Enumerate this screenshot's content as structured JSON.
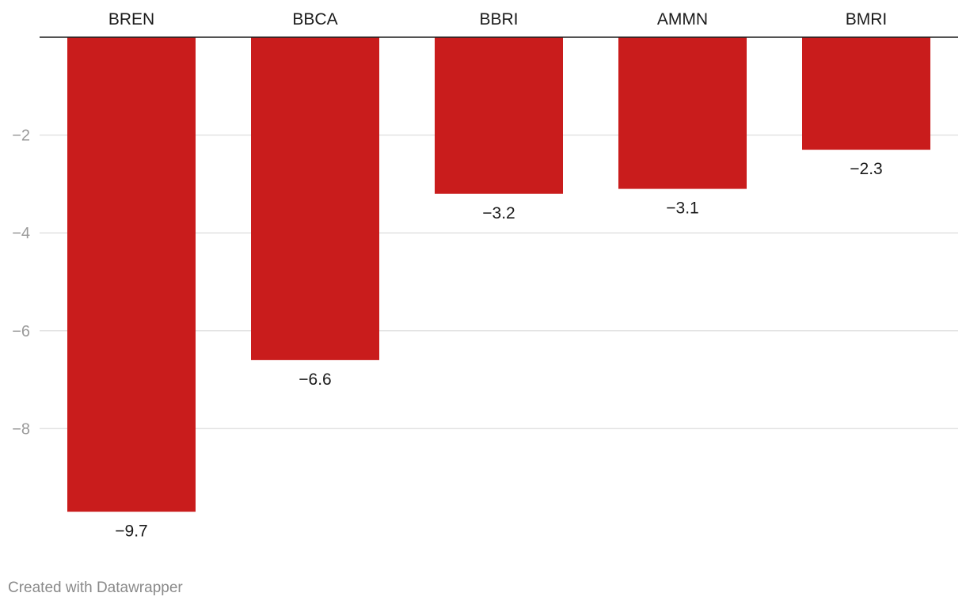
{
  "chart_data": {
    "type": "bar",
    "orientation": "vertical",
    "categories": [
      "BREN",
      "BBCA",
      "BBRI",
      "AMMN",
      "BMRI"
    ],
    "values": [
      -9.7,
      -6.6,
      -3.2,
      -3.1,
      -2.3
    ],
    "value_labels": [
      "−9.7",
      "−6.6",
      "−3.2",
      "−3.1",
      "−2.3"
    ],
    "yticks": [
      -2,
      -4,
      -6,
      -8
    ],
    "ytick_labels": [
      "−2",
      "−4",
      "−6",
      "−8"
    ],
    "ylim": [
      -10.5,
      0
    ],
    "grid": true,
    "category_labels_position": "top",
    "bar_color": "#c91c1c"
  },
  "footer": {
    "credit": "Created with Datawrapper"
  }
}
